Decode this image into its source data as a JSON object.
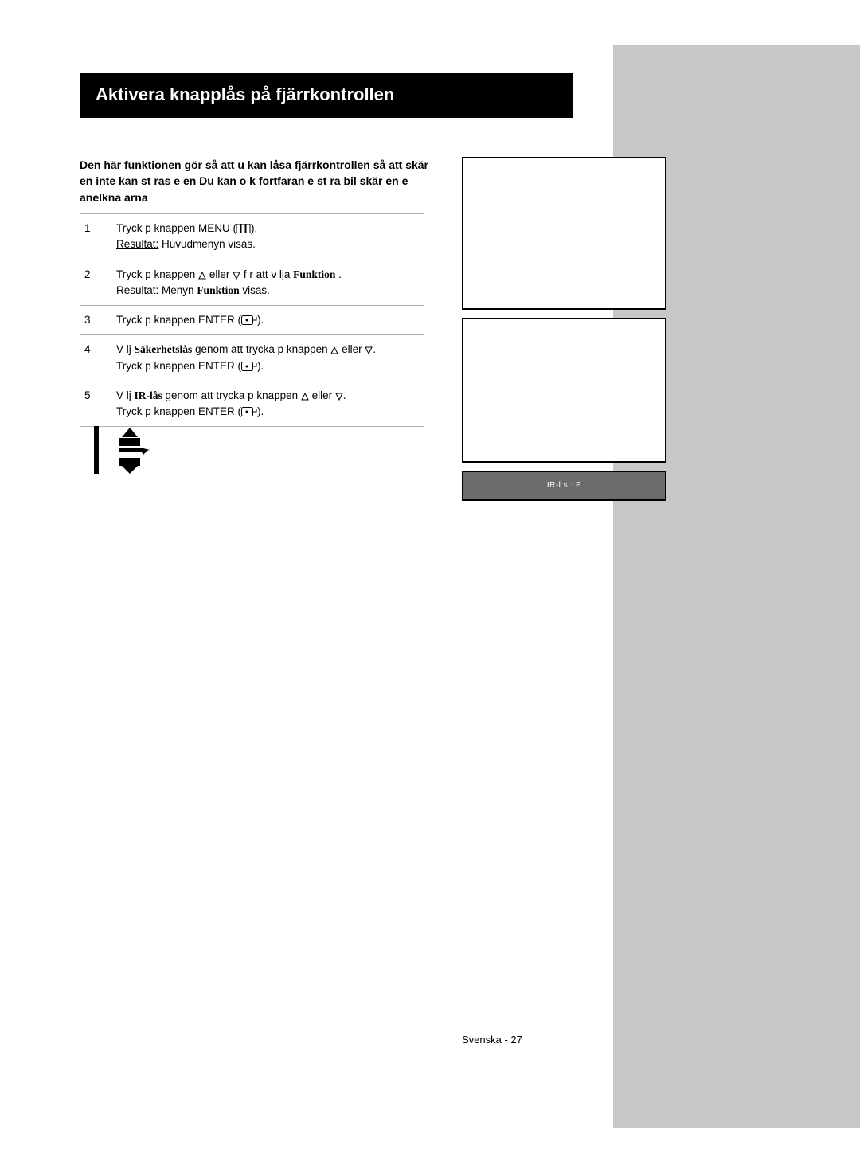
{
  "page": {
    "title": "Aktivera knapplås på fjärrkontrollen",
    "intro": "Den här funktionen gör så att  u kan låsa fjärrkontrollen så att skär  en inte kan st  ras  e    en  Du kan  o k fortfaran e st ra bil  skär  en   e     anelkna    arna",
    "footer": "Svenska - 27"
  },
  "steps": [
    {
      "num": "1",
      "parts": [
        {
          "t": "Tryck p  knappen  MENU ("
        },
        {
          "svg": "menu"
        },
        {
          "t": ")."
        },
        {
          "br": true
        },
        {
          "t": "Resultat:",
          "ul": true
        },
        {
          "t": "    Huvudmenyn visas."
        }
      ]
    },
    {
      "num": "2",
      "parts": [
        {
          "t": "Tryck p  knappen  "
        },
        {
          "svg": "up"
        },
        {
          "t": " eller "
        },
        {
          "svg": "down"
        },
        {
          "t": " f r att v lja  "
        },
        {
          "t": "Funktion",
          "ibold": true
        },
        {
          "t": "   ."
        },
        {
          "br": true
        },
        {
          "t": "Resultat:",
          "ul": true
        },
        {
          "t": "    Menyn "
        },
        {
          "t": "Funktion",
          "ibold": true
        },
        {
          "t": "    visas."
        }
      ]
    },
    {
      "num": "3",
      "parts": [
        {
          "t": "Tryck p  knappen  ENTER ("
        },
        {
          "svg": "enter"
        },
        {
          "t": ")."
        }
      ]
    },
    {
      "num": "4",
      "parts": [
        {
          "t": "V lj "
        },
        {
          "t": "Säkerhetslås",
          "ibold": true
        },
        {
          "t": "       genom att trycka p  knappen  "
        },
        {
          "svg": "up"
        },
        {
          "t": " eller "
        },
        {
          "svg": "down"
        },
        {
          "t": "."
        },
        {
          "br": true
        },
        {
          "t": "Tryck p  knappen  ENTER ("
        },
        {
          "svg": "enter"
        },
        {
          "t": ")."
        }
      ]
    },
    {
      "num": "5",
      "parts": [
        {
          "t": "V lj "
        },
        {
          "t": "IR-lås",
          "ibold": true
        },
        {
          "t": "     genom att trycka p  knappen  "
        },
        {
          "svg": "up"
        },
        {
          "t": " eller "
        },
        {
          "svg": "down"
        },
        {
          "t": "."
        },
        {
          "br": true
        },
        {
          "t": "Tryck p  knappen  ENTER ("
        },
        {
          "svg": "enter"
        },
        {
          "t": ")."
        }
      ]
    }
  ],
  "screen3": {
    "text": "IR-l s : P"
  },
  "colors": {
    "sidebar_bg": "#c7c8ca",
    "title_bg": "#000000",
    "title_fg": "#ffffff",
    "text": "#000000",
    "rule": "#b0b0b0",
    "screen3_bg": "#6c6c6c",
    "screen3_fg": "#ffffff"
  }
}
